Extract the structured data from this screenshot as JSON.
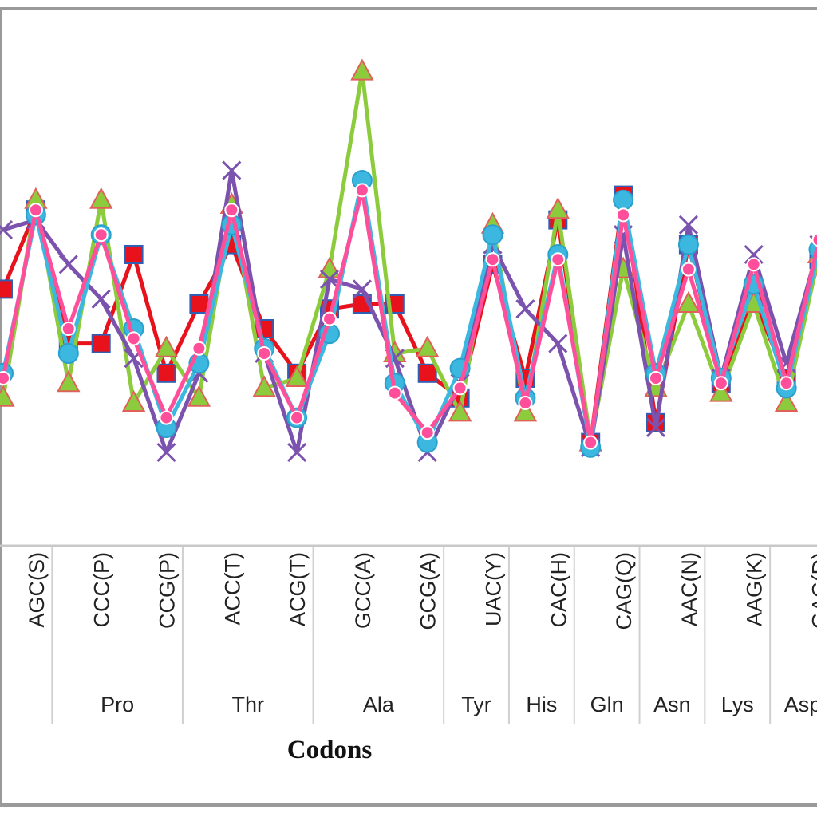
{
  "chart_data": {
    "type": "line",
    "xlabel": "Codons",
    "categories": [
      "",
      "AGC(S)",
      "",
      "CCC(P)",
      "",
      "CCG(P)",
      "",
      "ACC(T)",
      "",
      "ACG(T)",
      "",
      "GCC(A)",
      "",
      "GCG(A)",
      "",
      "UAC(Y)",
      "",
      "CAC(H)",
      "",
      "CAG(Q)",
      "",
      "AAC(N)",
      "",
      "AAG(K)",
      "",
      "GAC(D)"
    ],
    "groups": [
      {
        "label": "Pro",
        "from": 2,
        "to": 5
      },
      {
        "label": "Thr",
        "from": 6,
        "to": 9
      },
      {
        "label": "Ala",
        "from": 10,
        "to": 13
      },
      {
        "label": "Tyr",
        "from": 14,
        "to": 15
      },
      {
        "label": "His",
        "from": 16,
        "to": 17
      },
      {
        "label": "Gln",
        "from": 18,
        "to": 19
      },
      {
        "label": "Asn",
        "from": 20,
        "to": 21
      },
      {
        "label": "Lys",
        "from": 22,
        "to": 23
      },
      {
        "label": "Asp",
        "from": 24,
        "to": 25
      }
    ],
    "ylim": [
      0,
      100
    ],
    "series": [
      {
        "color": "#e8121c",
        "marker": "square",
        "values": [
          48,
          64,
          37,
          37,
          55,
          31,
          45,
          57,
          40,
          31,
          44,
          45,
          45,
          31,
          26,
          53,
          30,
          62,
          17,
          67,
          21,
          57,
          29,
          46,
          30,
          54
        ]
      },
      {
        "color": "#8ccc3c",
        "marker": "triangle",
        "values": [
          26,
          66,
          29,
          66,
          25,
          36,
          26,
          65,
          28,
          30,
          52,
          92,
          35,
          36,
          23,
          61,
          23,
          64,
          17,
          52,
          28,
          45,
          27,
          45,
          25,
          55
        ]
      },
      {
        "color": "#7b52ad",
        "marker": "x",
        "values": [
          60,
          62,
          53,
          46,
          34,
          15,
          31,
          72,
          35,
          15,
          50,
          48,
          34,
          15,
          29,
          57,
          44,
          37,
          16,
          59,
          20,
          61,
          30,
          55,
          33,
          57
        ]
      },
      {
        "color": "#3cb8e0",
        "marker": "circle",
        "values": [
          31,
          63,
          35,
          59,
          40,
          20,
          33,
          61,
          36,
          22,
          39,
          70,
          29,
          17,
          32,
          59,
          26,
          55,
          16,
          66,
          31,
          57,
          30,
          49,
          28,
          56
        ]
      },
      {
        "color": "#ff4f9b",
        "marker": "circle",
        "values": [
          30,
          64,
          40,
          59,
          38,
          22,
          36,
          64,
          35,
          22,
          42,
          68,
          27,
          19,
          28,
          54,
          25,
          54,
          17,
          63,
          30,
          52,
          29,
          53,
          29,
          58
        ]
      }
    ]
  }
}
